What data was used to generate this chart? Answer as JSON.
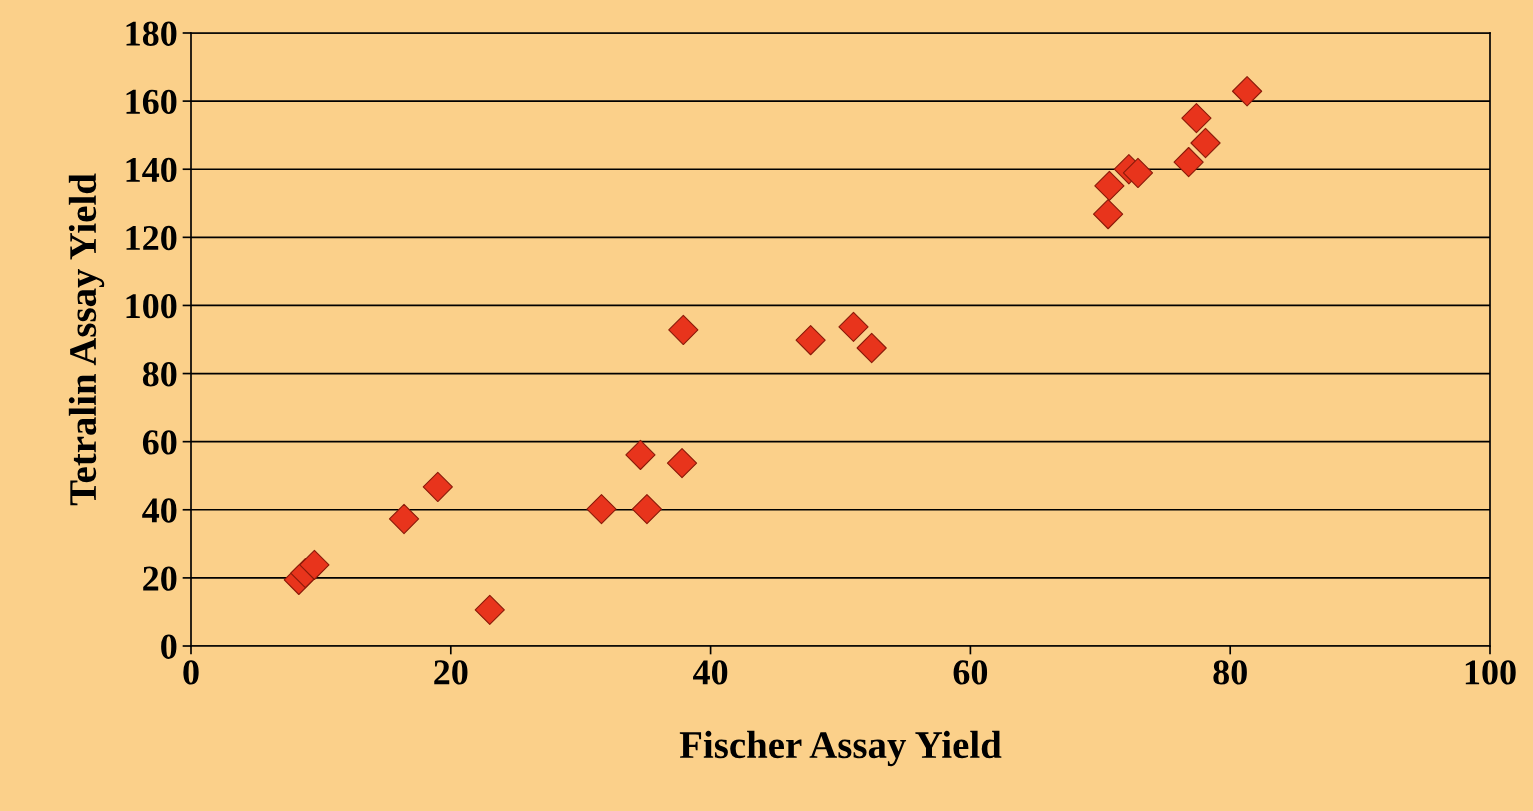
{
  "chart_data": {
    "type": "scatter",
    "xlabel": "Fischer Assay Yield",
    "ylabel": "Tetralin Assay Yield",
    "x": [
      8.3,
      8.8,
      9.5,
      16.4,
      19.0,
      23.0,
      31.6,
      34.6,
      35.1,
      37.8,
      37.9,
      47.7,
      51.0,
      52.4,
      70.6,
      70.7,
      72.2,
      72.9,
      76.8,
      77.4,
      78.1,
      81.3
    ],
    "series": [
      {
        "color": "#e8341c",
        "values": [
          19.4,
          21.4,
          23.8,
          37.3,
          46.7,
          10.6,
          40.2,
          56.1,
          40.2,
          53.7,
          92.8,
          89.8,
          93.7,
          87.5,
          126.8,
          135.1,
          140.0,
          138.9,
          142.1,
          155.0,
          147.7,
          162.9
        ]
      }
    ],
    "xlim": [
      0,
      100
    ],
    "ylim": [
      0,
      180
    ],
    "xticks": [
      0,
      20,
      40,
      60,
      80,
      100
    ],
    "yticks": [
      0,
      20,
      40,
      60,
      80,
      100,
      120,
      140,
      160,
      180
    ],
    "grid": "y",
    "marker": "diamond"
  }
}
